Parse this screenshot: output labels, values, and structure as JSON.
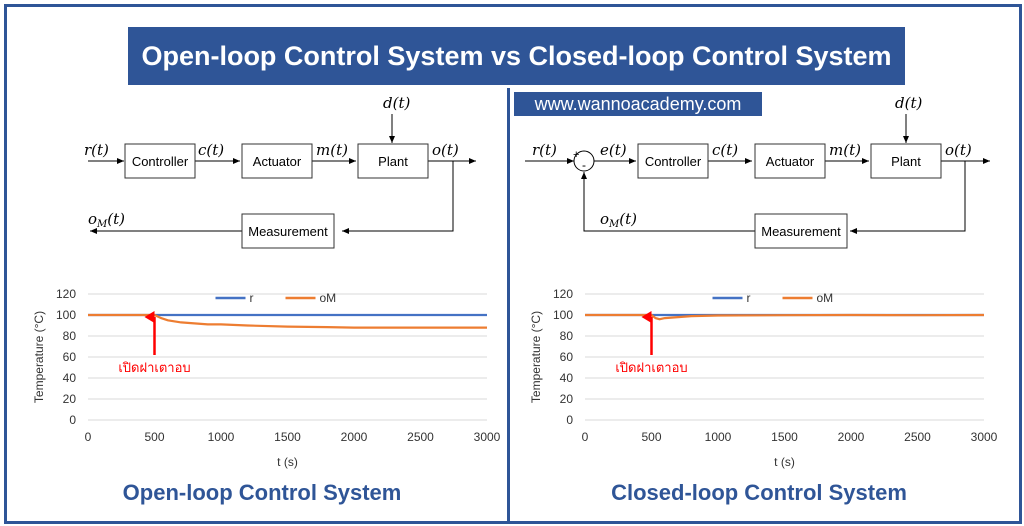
{
  "title": "Open-loop Control System vs Closed-loop Control System",
  "website": "www.wannoacademy.com",
  "open_loop": {
    "caption": "Open-loop Control System",
    "blocks": {
      "controller": "Controller",
      "actuator": "Actuator",
      "plant": "Plant",
      "measurement": "Measurement"
    },
    "signals": {
      "r": "r(t)",
      "c": "c(t)",
      "m": "m(t)",
      "d": "d(t)",
      "o": "o(t)",
      "oM": "oM(t)"
    }
  },
  "closed_loop": {
    "caption": "Closed-loop Control System",
    "blocks": {
      "controller": "Controller",
      "actuator": "Actuator",
      "plant": "Plant",
      "measurement": "Measurement"
    },
    "signals": {
      "r": "r(t)",
      "e": "e(t)",
      "c": "c(t)",
      "m": "m(t)",
      "d": "d(t)",
      "o": "o(t)",
      "oM": "oM(t)"
    },
    "summing_signs": {
      "plus": "+",
      "minus": "-"
    }
  },
  "chart_data": [
    {
      "type": "line",
      "xlabel": "t (s)",
      "ylabel": "Temperature (°C)",
      "xlim": [
        0,
        3000
      ],
      "ylim": [
        0,
        120
      ],
      "xticks": [
        0,
        500,
        1000,
        1500,
        2000,
        2500,
        3000
      ],
      "yticks": [
        0,
        20,
        40,
        60,
        80,
        100,
        120
      ],
      "legend_position": "top-center",
      "grid": true,
      "annotation": {
        "text": "เปิดฝาเตาอบ",
        "x": 500
      },
      "series": [
        {
          "name": "r",
          "color": "#4472c4",
          "x": [
            0,
            3000
          ],
          "y": [
            100,
            100
          ]
        },
        {
          "name": "oM",
          "color": "#ed7d31",
          "x": [
            0,
            500,
            550,
            600,
            700,
            800,
            900,
            1000,
            1200,
            1500,
            1800,
            2000,
            2300,
            2600,
            3000
          ],
          "y": [
            100,
            100,
            97,
            95,
            93,
            92,
            91,
            91,
            90,
            89,
            88.5,
            88,
            88,
            88,
            88
          ]
        }
      ]
    },
    {
      "type": "line",
      "xlabel": "t (s)",
      "ylabel": "Temperature (°C)",
      "xlim": [
        0,
        3000
      ],
      "ylim": [
        0,
        120
      ],
      "xticks": [
        0,
        500,
        1000,
        1500,
        2000,
        2500,
        3000
      ],
      "yticks": [
        0,
        20,
        40,
        60,
        80,
        100,
        120
      ],
      "legend_position": "top-center",
      "grid": true,
      "annotation": {
        "text": "เปิดฝาเตาอบ",
        "x": 500
      },
      "series": [
        {
          "name": "r",
          "color": "#4472c4",
          "x": [
            0,
            3000
          ],
          "y": [
            100,
            100
          ]
        },
        {
          "name": "oM",
          "color": "#ed7d31",
          "x": [
            0,
            500,
            530,
            560,
            600,
            700,
            800,
            1000,
            1500,
            2000,
            2500,
            3000
          ],
          "y": [
            100,
            100,
            97,
            96,
            97,
            98,
            99,
            99.5,
            99.8,
            100,
            99.8,
            100
          ]
        }
      ]
    }
  ]
}
